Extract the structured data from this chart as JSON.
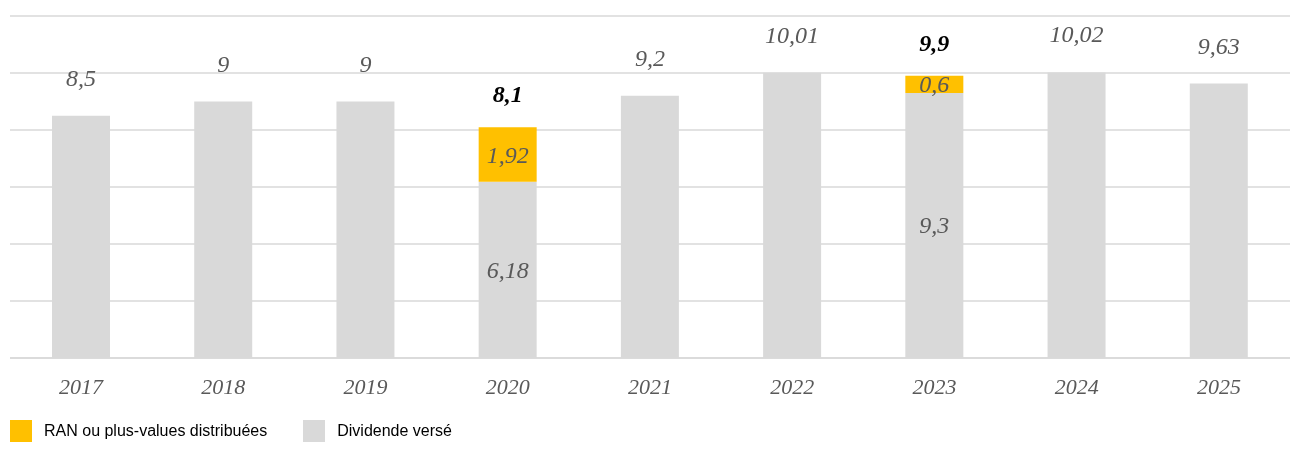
{
  "chart_data": {
    "type": "bar",
    "stacked": true,
    "categories": [
      "2017",
      "2018",
      "2019",
      "2020",
      "2021",
      "2022",
      "2023",
      "2024",
      "2025"
    ],
    "series": [
      {
        "name": "Dividende versé",
        "color": "#d9d9d9",
        "values": [
          8.5,
          9,
          9,
          6.18,
          9.2,
          10.01,
          9.3,
          10.02,
          9.63
        ],
        "value_labels": [
          "8,5",
          "9",
          "9",
          "6,18",
          "9,2",
          "10,01",
          "9,3",
          "10,02",
          "9,63"
        ]
      },
      {
        "name": "RAN ou plus-values distribuées",
        "color": "#ffc000",
        "values": [
          null,
          null,
          null,
          1.92,
          null,
          null,
          0.6,
          null,
          null
        ],
        "value_labels": [
          null,
          null,
          null,
          "1,92",
          null,
          null,
          "0,6",
          null,
          null
        ]
      }
    ],
    "totals": [
      null,
      null,
      null,
      "8,1",
      null,
      null,
      "9,9",
      null,
      null
    ],
    "ylim": [
      0,
      12
    ],
    "yticks": [
      {
        "value": 0,
        "label": null
      },
      {
        "value": 2,
        "label": null
      },
      {
        "value": 4,
        "label": null
      },
      {
        "value": 6,
        "label": null
      },
      {
        "value": 8,
        "label": null
      },
      {
        "value": 10,
        "label": null
      },
      {
        "value": 12,
        "label": null
      }
    ],
    "tick_labels": "x",
    "grid": "y",
    "legend": "bottom"
  }
}
